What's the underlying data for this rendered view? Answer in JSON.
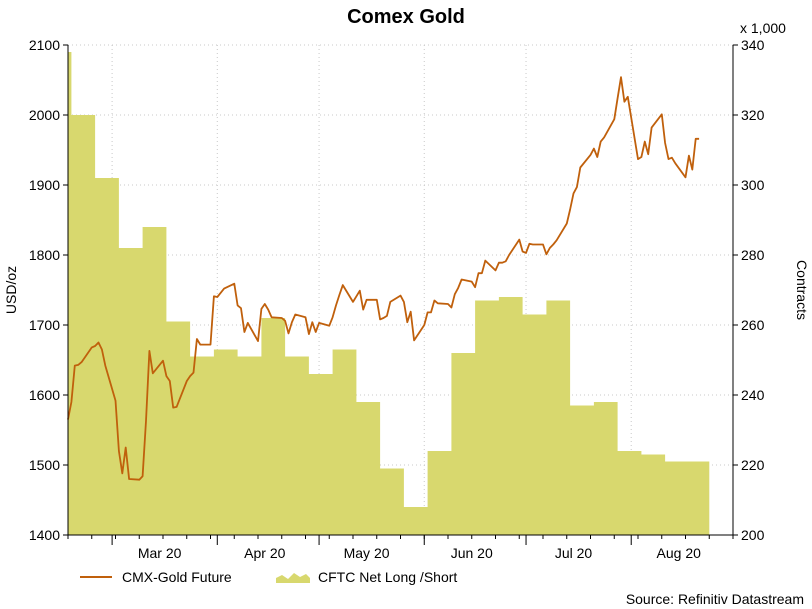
{
  "chart_data": {
    "type": "line",
    "title": "Comex Gold",
    "y_left": {
      "label": "USD/oz",
      "ticks": [
        1400,
        1500,
        1600,
        1700,
        1800,
        1900,
        2000,
        2100
      ],
      "range": [
        1400,
        2100
      ]
    },
    "y_right": {
      "label": "Contracts",
      "multiplier_label": "x 1,000",
      "ticks": [
        200,
        220,
        240,
        260,
        280,
        300,
        320,
        340
      ],
      "range": [
        200,
        340
      ]
    },
    "x_axis": {
      "range": [
        "2020-02-17",
        "2020-08-31"
      ],
      "month_ticks": [
        "2020-03-01",
        "2020-04-01",
        "2020-05-01",
        "2020-06-01",
        "2020-07-01",
        "2020-08-01"
      ],
      "month_labels": [
        {
          "date": "2020-03-15",
          "label": "Mar 20"
        },
        {
          "date": "2020-04-15",
          "label": "Apr 20"
        },
        {
          "date": "2020-05-15",
          "label": "May 20"
        },
        {
          "date": "2020-06-15",
          "label": "Jun 20"
        },
        {
          "date": "2020-07-15",
          "label": "Jul 20"
        },
        {
          "date": "2020-08-15",
          "label": "Aug 20"
        }
      ]
    },
    "grid": true,
    "legend_position": "bottom-left",
    "series": [
      {
        "name": "CMX-Gold Future",
        "kind": "line",
        "axis": "left",
        "color": "#C0600C",
        "points": [
          [
            "2020-02-17",
            1565
          ],
          [
            "2020-02-18",
            1590
          ],
          [
            "2020-02-19",
            1642
          ],
          [
            "2020-02-20",
            1643
          ],
          [
            "2020-02-21",
            1647
          ],
          [
            "2020-02-24",
            1668
          ],
          [
            "2020-02-25",
            1670
          ],
          [
            "2020-02-26",
            1675
          ],
          [
            "2020-02-27",
            1665
          ],
          [
            "2020-02-28",
            1642
          ],
          [
            "2020-03-02",
            1592
          ],
          [
            "2020-03-03",
            1520
          ],
          [
            "2020-03-04",
            1488
          ],
          [
            "2020-03-05",
            1525
          ],
          [
            "2020-03-06",
            1480
          ],
          [
            "2020-03-09",
            1479
          ],
          [
            "2020-03-10",
            1484
          ],
          [
            "2020-03-11",
            1563
          ],
          [
            "2020-03-12",
            1663
          ],
          [
            "2020-03-13",
            1631
          ],
          [
            "2020-03-16",
            1649
          ],
          [
            "2020-03-17",
            1627
          ],
          [
            "2020-03-18",
            1620
          ],
          [
            "2020-03-19",
            1582
          ],
          [
            "2020-03-20",
            1583
          ],
          [
            "2020-03-23",
            1620
          ],
          [
            "2020-03-24",
            1627
          ],
          [
            "2020-03-25",
            1632
          ],
          [
            "2020-03-26",
            1680
          ],
          [
            "2020-03-27",
            1672
          ],
          [
            "2020-03-30",
            1672
          ],
          [
            "2020-03-31",
            1741
          ],
          [
            "2020-04-01",
            1740
          ],
          [
            "2020-04-02",
            1746
          ],
          [
            "2020-04-03",
            1752
          ],
          [
            "2020-04-06",
            1759
          ],
          [
            "2020-04-07",
            1728
          ],
          [
            "2020-04-08",
            1724
          ],
          [
            "2020-04-09",
            1690
          ],
          [
            "2020-04-10",
            1703
          ],
          [
            "2020-04-13",
            1677
          ],
          [
            "2020-04-14",
            1723
          ],
          [
            "2020-04-15",
            1730
          ],
          [
            "2020-04-16",
            1722
          ],
          [
            "2020-04-17",
            1711
          ],
          [
            "2020-04-20",
            1710
          ],
          [
            "2020-04-21",
            1706
          ],
          [
            "2020-04-22",
            1688
          ],
          [
            "2020-04-23",
            1704
          ],
          [
            "2020-04-24",
            1715
          ],
          [
            "2020-04-27",
            1711
          ],
          [
            "2020-04-28",
            1687
          ],
          [
            "2020-04-29",
            1704
          ],
          [
            "2020-04-30",
            1690
          ],
          [
            "2020-05-01",
            1703
          ],
          [
            "2020-05-04",
            1699
          ],
          [
            "2020-05-05",
            1711
          ],
          [
            "2020-05-06",
            1728
          ],
          [
            "2020-05-07",
            1743
          ],
          [
            "2020-05-08",
            1757
          ],
          [
            "2020-05-11",
            1733
          ],
          [
            "2020-05-12",
            1741
          ],
          [
            "2020-05-13",
            1749
          ],
          [
            "2020-05-14",
            1722
          ],
          [
            "2020-05-15",
            1736
          ],
          [
            "2020-05-18",
            1736
          ],
          [
            "2020-05-19",
            1708
          ],
          [
            "2020-05-20",
            1710
          ],
          [
            "2020-05-21",
            1713
          ],
          [
            "2020-05-22",
            1733
          ],
          [
            "2020-05-25",
            1742
          ],
          [
            "2020-05-26",
            1733
          ],
          [
            "2020-05-27",
            1704
          ],
          [
            "2020-05-28",
            1719
          ],
          [
            "2020-05-29",
            1678
          ],
          [
            "2020-06-01",
            1700
          ],
          [
            "2020-06-02",
            1718
          ],
          [
            "2020-06-03",
            1718
          ],
          [
            "2020-06-04",
            1735
          ],
          [
            "2020-06-05",
            1731
          ],
          [
            "2020-06-08",
            1730
          ],
          [
            "2020-06-09",
            1725
          ],
          [
            "2020-06-10",
            1744
          ],
          [
            "2020-06-11",
            1753
          ],
          [
            "2020-06-12",
            1765
          ],
          [
            "2020-06-15",
            1762
          ],
          [
            "2020-06-16",
            1754
          ],
          [
            "2020-06-17",
            1774
          ],
          [
            "2020-06-18",
            1774
          ],
          [
            "2020-06-19",
            1792
          ],
          [
            "2020-06-22",
            1778
          ],
          [
            "2020-06-23",
            1789
          ],
          [
            "2020-06-24",
            1789
          ],
          [
            "2020-06-25",
            1791
          ],
          [
            "2020-06-26",
            1800
          ],
          [
            "2020-06-29",
            1822
          ],
          [
            "2020-06-30",
            1805
          ],
          [
            "2020-07-01",
            1803
          ],
          [
            "2020-07-02",
            1816
          ],
          [
            "2020-07-03",
            1815
          ],
          [
            "2020-07-06",
            1815
          ],
          [
            "2020-07-07",
            1801
          ],
          [
            "2020-07-08",
            1810
          ],
          [
            "2020-07-09",
            1815
          ],
          [
            "2020-07-10",
            1821
          ],
          [
            "2020-07-13",
            1845
          ],
          [
            "2020-07-14",
            1865
          ],
          [
            "2020-07-15",
            1888
          ],
          [
            "2020-07-16",
            1897
          ],
          [
            "2020-07-17",
            1925
          ],
          [
            "2020-07-20",
            1943
          ],
          [
            "2020-07-21",
            1952
          ],
          [
            "2020-07-22",
            1940
          ],
          [
            "2020-07-23",
            1962
          ],
          [
            "2020-07-24",
            1968
          ],
          [
            "2020-07-27",
            1994
          ],
          [
            "2020-07-28",
            2024
          ],
          [
            "2020-07-29",
            2054
          ],
          [
            "2020-07-30",
            2019
          ],
          [
            "2020-07-31",
            2026
          ],
          [
            "2020-08-03",
            1937
          ],
          [
            "2020-08-04",
            1940
          ],
          [
            "2020-08-05",
            1962
          ],
          [
            "2020-08-06",
            1944
          ],
          [
            "2020-08-07",
            1982
          ],
          [
            "2020-08-10",
            2001
          ],
          [
            "2020-08-11",
            1960
          ],
          [
            "2020-08-12",
            1937
          ],
          [
            "2020-08-13",
            1939
          ],
          [
            "2020-08-14",
            1931
          ],
          [
            "2020-08-17",
            1911
          ],
          [
            "2020-08-18",
            1942
          ],
          [
            "2020-08-19",
            1922
          ],
          [
            "2020-08-20",
            1966
          ],
          [
            "2020-08-21",
            1966
          ]
        ]
      },
      {
        "name": "CFTC Net Long /Short",
        "kind": "area",
        "axis": "right",
        "color": "#D8D86E",
        "weekly": [
          [
            "2020-02-17",
            338
          ],
          [
            "2020-02-18",
            320
          ],
          [
            "2020-02-25",
            302
          ],
          [
            "2020-03-03",
            282
          ],
          [
            "2020-03-10",
            288
          ],
          [
            "2020-03-17",
            261
          ],
          [
            "2020-03-24",
            251
          ],
          [
            "2020-03-31",
            253
          ],
          [
            "2020-04-07",
            251
          ],
          [
            "2020-04-14",
            262
          ],
          [
            "2020-04-21",
            251
          ],
          [
            "2020-04-28",
            246
          ],
          [
            "2020-05-05",
            253
          ],
          [
            "2020-05-12",
            238
          ],
          [
            "2020-05-19",
            219
          ],
          [
            "2020-05-26",
            208
          ],
          [
            "2020-06-02",
            224
          ],
          [
            "2020-06-09",
            252
          ],
          [
            "2020-06-16",
            267
          ],
          [
            "2020-06-23",
            268
          ],
          [
            "2020-06-30",
            263
          ],
          [
            "2020-07-07",
            267
          ],
          [
            "2020-07-14",
            237
          ],
          [
            "2020-07-21",
            238
          ],
          [
            "2020-07-28",
            224
          ],
          [
            "2020-08-04",
            223
          ],
          [
            "2020-08-11",
            221
          ],
          [
            "2020-08-18",
            221
          ]
        ],
        "end_date": "2020-08-24"
      }
    ]
  },
  "source_text": "Source: Refinitiv Datastream"
}
